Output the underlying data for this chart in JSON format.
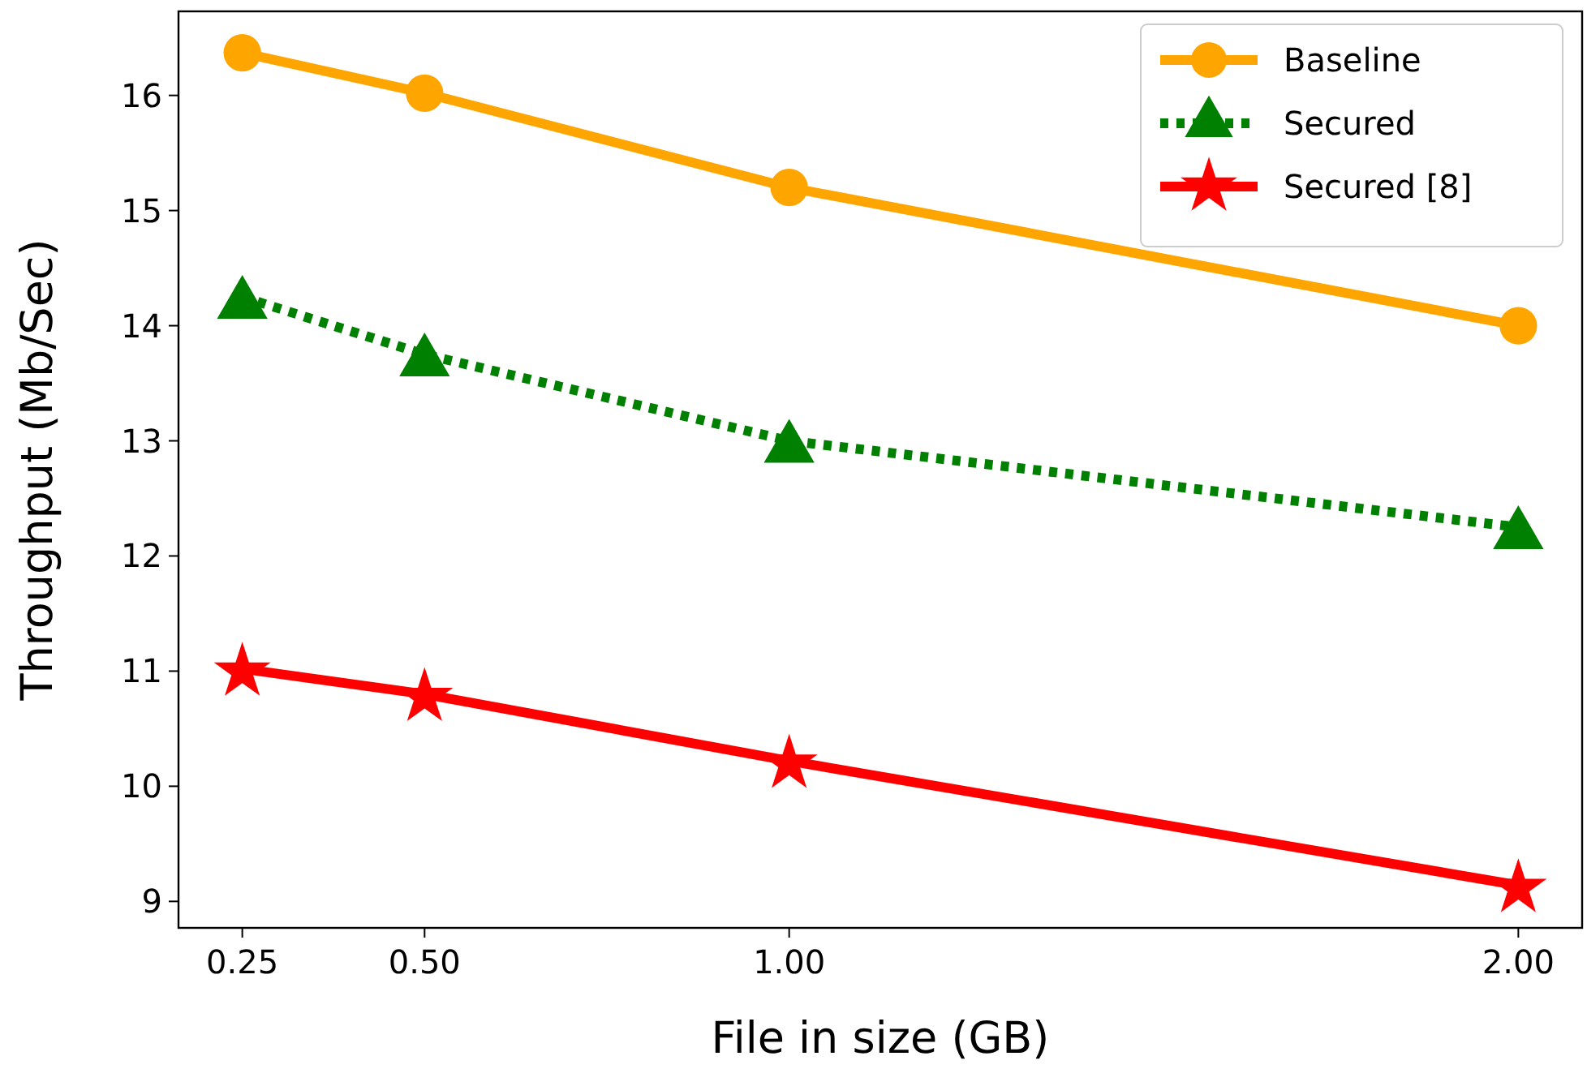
{
  "chart_data": {
    "type": "line",
    "xlabel": "File in size (GB)",
    "ylabel": "Throughput (Mb/Sec)",
    "x": [
      0.25,
      0.5,
      1.0,
      2.0
    ],
    "xlim": [
      0.1625,
      2.0875
    ],
    "ylim": [
      8.77,
      16.73
    ],
    "xticks": [
      {
        "value": 0.25,
        "label": "0.25"
      },
      {
        "value": 0.5,
        "label": "0.50"
      },
      {
        "value": 1.0,
        "label": "1.00"
      },
      {
        "value": 2.0,
        "label": "2.00"
      }
    ],
    "yticks": [
      9,
      10,
      11,
      12,
      13,
      14,
      15,
      16
    ],
    "legend": "top right",
    "grid": false,
    "series": [
      {
        "name": "Baseline",
        "color": "#ffa500",
        "marker": "circle",
        "line_style": "solid",
        "values": [
          16.37,
          16.02,
          15.2,
          14.0
        ]
      },
      {
        "name": "Secured",
        "color": "#008000",
        "marker": "triangle",
        "line_style": "dotted",
        "values": [
          14.25,
          13.75,
          13.0,
          12.25
        ]
      },
      {
        "name": "Secured [8]",
        "color": "#ff0000",
        "marker": "star",
        "line_style": "solid",
        "values": [
          11.02,
          10.8,
          10.22,
          9.14
        ]
      }
    ]
  }
}
